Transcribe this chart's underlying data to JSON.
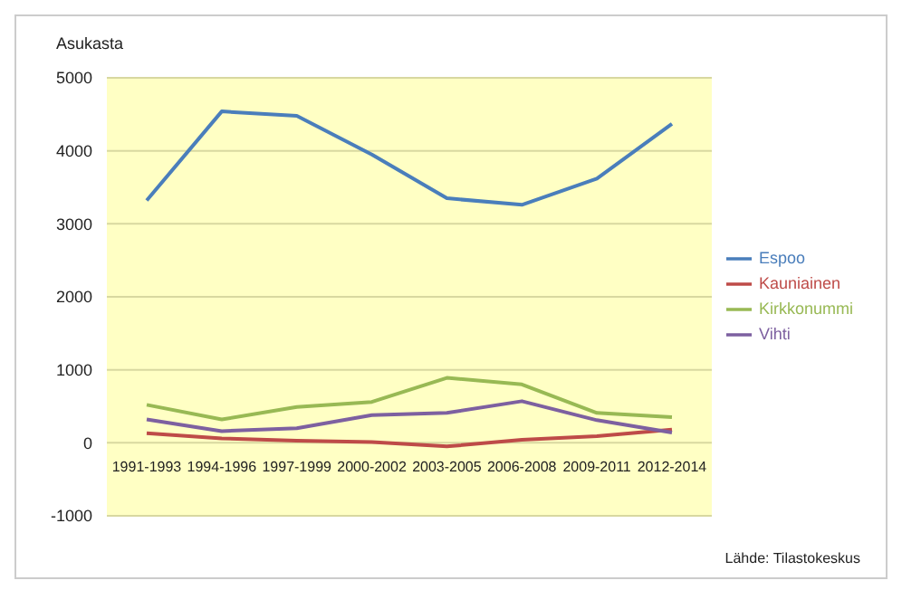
{
  "chart_data": {
    "type": "line",
    "ylabel": "Asukasta",
    "categories": [
      "1991-1993",
      "1994-1996",
      "1997-1999",
      "2000-2002",
      "2003-2005",
      "2006-2008",
      "2009-2011",
      "2012-2014"
    ],
    "series": [
      {
        "name": "Espoo",
        "color": "#4a7ebb",
        "values": [
          3320,
          4540,
          4480,
          3950,
          3350,
          3260,
          3620,
          4370
        ]
      },
      {
        "name": "Kauniainen",
        "color": "#be4b48",
        "values": [
          130,
          60,
          30,
          10,
          -50,
          40,
          90,
          180
        ]
      },
      {
        "name": "Kirkkonummi",
        "color": "#98b954",
        "values": [
          520,
          320,
          490,
          560,
          890,
          800,
          410,
          350
        ]
      },
      {
        "name": "Vihti",
        "color": "#7d60a0",
        "values": [
          320,
          160,
          200,
          380,
          410,
          570,
          310,
          140
        ]
      }
    ],
    "ylim": [
      -1000,
      5000
    ],
    "yticks": [
      -1000,
      0,
      1000,
      2000,
      3000,
      4000,
      5000
    ],
    "grid": "y",
    "legend": "right",
    "marker": "none",
    "line_style": "solid",
    "annotations": [
      "Lähde: Tilastokeskus"
    ]
  }
}
